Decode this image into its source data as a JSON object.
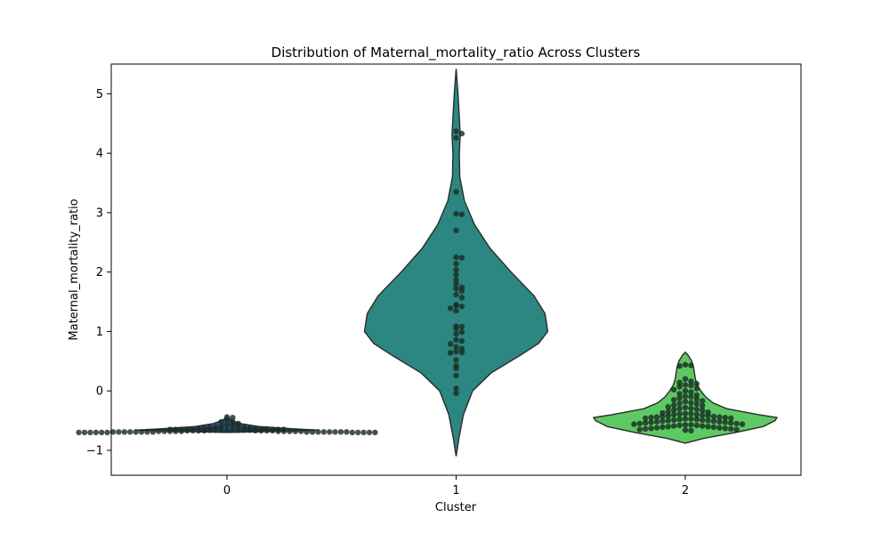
{
  "chart_data": {
    "type": "violin",
    "title": "Distribution of Maternal_mortality_ratio Across Clusters",
    "xlabel": "Cluster",
    "ylabel": "Maternal_mortality_ratio",
    "categories": [
      "0",
      "1",
      "2"
    ],
    "ylim": [
      -1.42,
      5.5
    ],
    "yticks": [
      -1,
      0,
      1,
      2,
      3,
      4,
      5
    ],
    "colors": {
      "cluster_0": "#3b528b",
      "cluster_1": "#2c8782",
      "cluster_2": "#5ec962",
      "outline": "#2b2b2b",
      "points": "#1a2e24"
    },
    "violins": [
      {
        "cluster": "0",
        "range": [
          -0.7,
          -0.45
        ],
        "mode": -0.65,
        "profile": [
          [
            -0.7,
            0.0
          ],
          [
            -0.68,
            0.55
          ],
          [
            -0.66,
            1.0
          ],
          [
            -0.64,
            0.75
          ],
          [
            -0.6,
            0.35
          ],
          [
            -0.55,
            0.15
          ],
          [
            -0.5,
            0.06
          ],
          [
            -0.45,
            0.0
          ]
        ]
      },
      {
        "cluster": "1",
        "range": [
          -1.1,
          5.42
        ],
        "mode": 1.0,
        "profile": [
          [
            -1.1,
            0.0
          ],
          [
            -0.8,
            0.03
          ],
          [
            -0.4,
            0.08
          ],
          [
            0.0,
            0.18
          ],
          [
            0.3,
            0.38
          ],
          [
            0.6,
            0.7
          ],
          [
            0.8,
            0.9
          ],
          [
            1.0,
            1.0
          ],
          [
            1.3,
            0.97
          ],
          [
            1.6,
            0.85
          ],
          [
            2.0,
            0.6
          ],
          [
            2.4,
            0.37
          ],
          [
            2.8,
            0.2
          ],
          [
            3.2,
            0.09
          ],
          [
            3.6,
            0.04
          ],
          [
            4.0,
            0.035
          ],
          [
            4.3,
            0.045
          ],
          [
            4.6,
            0.035
          ],
          [
            5.0,
            0.02
          ],
          [
            5.42,
            0.0
          ]
        ]
      },
      {
        "cluster": "2",
        "range": [
          -0.88,
          0.65
        ],
        "mode": -0.47,
        "profile": [
          [
            -0.88,
            0.0
          ],
          [
            -0.8,
            0.2
          ],
          [
            -0.7,
            0.55
          ],
          [
            -0.6,
            0.85
          ],
          [
            -0.5,
            0.98
          ],
          [
            -0.45,
            1.0
          ],
          [
            -0.4,
            0.8
          ],
          [
            -0.3,
            0.45
          ],
          [
            -0.2,
            0.3
          ],
          [
            -0.1,
            0.22
          ],
          [
            0.0,
            0.17
          ],
          [
            0.1,
            0.13
          ],
          [
            0.2,
            0.11
          ],
          [
            0.3,
            0.1
          ],
          [
            0.4,
            0.09
          ],
          [
            0.5,
            0.07
          ],
          [
            0.6,
            0.03
          ],
          [
            0.65,
            0.0
          ]
        ]
      }
    ],
    "points": [
      {
        "cluster": "0",
        "values": [
          -0.44,
          -0.45,
          -0.48,
          -0.52,
          -0.52,
          -0.55,
          -0.57,
          -0.58,
          -0.6,
          -0.6,
          -0.61,
          -0.62,
          -0.62,
          -0.63,
          -0.63,
          -0.63,
          -0.64,
          -0.64,
          -0.64,
          -0.64,
          -0.65,
          -0.65,
          -0.65,
          -0.65,
          -0.65,
          -0.65,
          -0.65,
          -0.66,
          -0.66,
          -0.66,
          -0.66,
          -0.66,
          -0.66,
          -0.66,
          -0.66,
          -0.67,
          -0.67,
          -0.67,
          -0.67,
          -0.67,
          -0.67,
          -0.67,
          -0.67,
          -0.68,
          -0.68,
          -0.68,
          -0.68,
          -0.68,
          -0.68,
          -0.68,
          -0.68,
          -0.68,
          -0.68,
          -0.69,
          -0.69,
          -0.69,
          -0.69,
          -0.69,
          -0.69,
          -0.69,
          -0.69,
          -0.69,
          -0.69,
          -0.69,
          -0.69,
          -0.69,
          -0.69,
          -0.69,
          -0.69,
          -0.7,
          -0.7,
          -0.7,
          -0.7,
          -0.7,
          -0.7,
          -0.7,
          -0.7,
          -0.7,
          -0.7,
          -0.7
        ]
      },
      {
        "cluster": "1",
        "values": [
          4.37,
          4.33,
          4.26,
          3.35,
          2.98,
          2.97,
          2.7,
          2.25,
          2.24,
          2.14,
          2.04,
          1.96,
          1.87,
          1.8,
          1.74,
          1.72,
          1.68,
          1.62,
          1.57,
          1.45,
          1.44,
          1.42,
          1.39,
          1.35,
          1.09,
          1.08,
          1.05,
          0.99,
          0.96,
          0.86,
          0.84,
          0.79,
          0.74,
          0.71,
          0.66,
          0.65,
          0.64,
          0.52,
          0.42,
          0.38,
          0.26,
          0.04,
          -0.04
        ]
      },
      {
        "cluster": "2",
        "values": [
          0.44,
          0.43,
          0.42,
          0.2,
          0.16,
          0.14,
          0.12,
          0.1,
          0.09,
          0.07,
          0.04,
          0.02,
          0.0,
          -0.02,
          -0.05,
          -0.07,
          -0.09,
          -0.1,
          -0.12,
          -0.14,
          -0.15,
          -0.17,
          -0.18,
          -0.2,
          -0.21,
          -0.22,
          -0.24,
          -0.25,
          -0.27,
          -0.28,
          -0.29,
          -0.3,
          -0.31,
          -0.32,
          -0.33,
          -0.35,
          -0.36,
          -0.37,
          -0.38,
          -0.38,
          -0.39,
          -0.4,
          -0.4,
          -0.41,
          -0.42,
          -0.42,
          -0.43,
          -0.43,
          -0.44,
          -0.44,
          -0.45,
          -0.45,
          -0.46,
          -0.46,
          -0.47,
          -0.47,
          -0.48,
          -0.48,
          -0.49,
          -0.49,
          -0.5,
          -0.5,
          -0.51,
          -0.51,
          -0.52,
          -0.52,
          -0.53,
          -0.53,
          -0.54,
          -0.54,
          -0.55,
          -0.55,
          -0.56,
          -0.56,
          -0.57,
          -0.57,
          -0.58,
          -0.58,
          -0.59,
          -0.59,
          -0.6,
          -0.6,
          -0.61,
          -0.61,
          -0.62,
          -0.62,
          -0.63,
          -0.63,
          -0.64,
          -0.64,
          -0.65,
          -0.65,
          -0.66,
          -0.67
        ]
      }
    ]
  }
}
